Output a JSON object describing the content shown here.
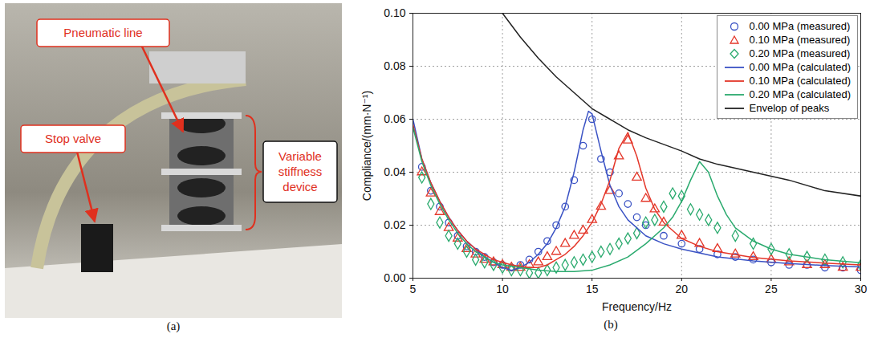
{
  "photo": {
    "label": "(a)",
    "annotations": [
      "Pneumatic line",
      "Stop valve",
      "Variable stiffness device"
    ]
  },
  "chart_data": {
    "type": "line",
    "panel_label": "(b)",
    "x_label": "Frequency/Hz",
    "y_label": "Compliance/(mm·N⁻¹)",
    "xlim": [
      5,
      30
    ],
    "xticks": [
      5,
      10,
      15,
      20,
      25,
      30
    ],
    "ylim": [
      0,
      0.1
    ],
    "yticks": [
      {
        "value": 0,
        "label": "0.00"
      },
      {
        "value": 0.02,
        "label": "0.02"
      },
      {
        "value": 0.04,
        "label": "0.04"
      },
      {
        "value": 0.06,
        "label": "0.06"
      },
      {
        "value": 0.08,
        "label": "0.08"
      },
      {
        "value": 0.1,
        "label": "0.10"
      }
    ],
    "grid": true,
    "legend": "upper right",
    "series": [
      {
        "name": "0.00 MPa (measured)",
        "type": "scatter",
        "marker": "circle",
        "color": "#3a52c4",
        "x": [
          5.5,
          6,
          6.5,
          7,
          7.5,
          8,
          8.5,
          9,
          9.5,
          10,
          10.5,
          11,
          11.5,
          12,
          12.5,
          13,
          13.5,
          14,
          14.5,
          15,
          15.5,
          16,
          16.5,
          17,
          17.5,
          18,
          19,
          20,
          21,
          22,
          23,
          24,
          25,
          26,
          27,
          28,
          29,
          30
        ],
        "values": [
          0.042,
          0.033,
          0.027,
          0.021,
          0.016,
          0.012,
          0.01,
          0.008,
          0.006,
          0.005,
          0.004,
          0.005,
          0.007,
          0.01,
          0.014,
          0.02,
          0.027,
          0.037,
          0.05,
          0.06,
          0.045,
          0.04,
          0.032,
          0.028,
          0.023,
          0.02,
          0.016,
          0.013,
          0.011,
          0.009,
          0.008,
          0.007,
          0.006,
          0.005,
          0.005,
          0.004,
          0.004,
          0.003
        ]
      },
      {
        "name": "0.10 MPa (measured)",
        "type": "scatter",
        "marker": "triangle",
        "color": "#e4372a",
        "x": [
          5.5,
          6,
          6.5,
          7,
          7.5,
          8,
          8.5,
          9,
          9.5,
          10,
          10.5,
          11,
          11.5,
          12,
          12.5,
          13,
          13.5,
          14,
          14.5,
          15,
          15.5,
          16,
          16.5,
          17,
          17.5,
          18,
          18.5,
          19,
          20,
          21,
          22,
          23,
          24,
          25,
          26,
          27,
          28,
          29,
          30
        ],
        "values": [
          0.04,
          0.032,
          0.025,
          0.019,
          0.015,
          0.011,
          0.009,
          0.007,
          0.006,
          0.005,
          0.004,
          0.004,
          0.005,
          0.006,
          0.008,
          0.01,
          0.013,
          0.016,
          0.018,
          0.022,
          0.027,
          0.033,
          0.046,
          0.052,
          0.038,
          0.03,
          0.026,
          0.021,
          0.016,
          0.013,
          0.011,
          0.009,
          0.008,
          0.007,
          0.006,
          0.005,
          0.005,
          0.004,
          0.004
        ]
      },
      {
        "name": "0.20 MPa (measured)",
        "type": "scatter",
        "marker": "diamond",
        "color": "#2aaa6e",
        "x": [
          5.5,
          6,
          6.5,
          7,
          7.5,
          8,
          8.5,
          9,
          9.5,
          10,
          10.5,
          11,
          11.5,
          12,
          12.5,
          13,
          13.5,
          14,
          14.5,
          15,
          15.5,
          16,
          16.5,
          17,
          17.5,
          18,
          18.5,
          19,
          19.5,
          20,
          20.5,
          21,
          21.5,
          22,
          23,
          24,
          25,
          26,
          27,
          28,
          29,
          30
        ],
        "values": [
          0.038,
          0.028,
          0.021,
          0.016,
          0.013,
          0.01,
          0.007,
          0.006,
          0.005,
          0.004,
          0.003,
          0.003,
          0.002,
          0.002,
          0.003,
          0.004,
          0.005,
          0.006,
          0.007,
          0.008,
          0.01,
          0.011,
          0.013,
          0.015,
          0.017,
          0.021,
          0.022,
          0.027,
          0.032,
          0.031,
          0.026,
          0.024,
          0.022,
          0.019,
          0.016,
          0.013,
          0.011,
          0.009,
          0.008,
          0.007,
          0.006,
          0.005
        ]
      },
      {
        "name": "0.00 MPa (calculated)",
        "type": "line",
        "line_style": "solid",
        "color": "#3a52c4",
        "x": [
          5,
          5.5,
          6,
          6.5,
          7,
          7.5,
          8,
          8.5,
          9,
          9.5,
          10,
          10.5,
          11,
          11.5,
          12,
          12.5,
          13,
          13.5,
          14,
          14.5,
          14.8,
          15,
          15.5,
          16,
          16.5,
          17,
          18,
          19,
          20,
          22,
          24,
          26,
          28,
          30
        ],
        "values": [
          0.06,
          0.045,
          0.036,
          0.029,
          0.023,
          0.018,
          0.014,
          0.011,
          0.008,
          0.006,
          0.004,
          0.003,
          0.004,
          0.006,
          0.009,
          0.013,
          0.019,
          0.027,
          0.04,
          0.056,
          0.063,
          0.062,
          0.048,
          0.035,
          0.027,
          0.022,
          0.016,
          0.013,
          0.011,
          0.008,
          0.0065,
          0.0055,
          0.0048,
          0.0042
        ]
      },
      {
        "name": "0.10 MPa (calculated)",
        "type": "line",
        "line_style": "solid",
        "color": "#e4372a",
        "x": [
          5,
          5.5,
          6,
          6.5,
          7,
          7.5,
          8,
          8.5,
          9,
          9.5,
          10,
          10.5,
          11,
          11.5,
          12,
          12.5,
          13,
          13.5,
          14,
          14.5,
          15,
          15.5,
          16,
          16.5,
          17,
          17.5,
          18,
          18.5,
          19,
          20,
          21,
          22,
          24,
          26,
          28,
          30
        ],
        "values": [
          0.058,
          0.045,
          0.036,
          0.029,
          0.023,
          0.018,
          0.014,
          0.011,
          0.009,
          0.007,
          0.006,
          0.005,
          0.0045,
          0.004,
          0.004,
          0.005,
          0.007,
          0.009,
          0.012,
          0.016,
          0.021,
          0.028,
          0.037,
          0.049,
          0.055,
          0.046,
          0.034,
          0.026,
          0.021,
          0.015,
          0.012,
          0.01,
          0.0078,
          0.0065,
          0.0057,
          0.005
        ]
      },
      {
        "name": "0.20 MPa (calculated)",
        "type": "line",
        "line_style": "solid",
        "color": "#2aaa6e",
        "x": [
          5,
          5.5,
          6,
          6.5,
          7,
          7.5,
          8,
          8.5,
          9,
          9.5,
          10,
          11,
          12,
          13,
          14,
          15,
          16,
          17,
          18,
          19,
          19.5,
          20,
          20.5,
          21,
          21.5,
          22,
          22.5,
          23,
          24,
          25,
          26,
          28,
          30
        ],
        "values": [
          0.057,
          0.044,
          0.035,
          0.028,
          0.022,
          0.017,
          0.013,
          0.01,
          0.008,
          0.006,
          0.005,
          0.004,
          0.003,
          0.0025,
          0.0025,
          0.003,
          0.005,
          0.008,
          0.013,
          0.019,
          0.023,
          0.029,
          0.037,
          0.044,
          0.04,
          0.031,
          0.024,
          0.019,
          0.014,
          0.011,
          0.009,
          0.007,
          0.0058
        ]
      },
      {
        "name": "Envelop of peaks",
        "type": "line",
        "line_style": "solid",
        "color": "#222222",
        "x": [
          10,
          11,
          12,
          13,
          14,
          15,
          16,
          17,
          18,
          20,
          21,
          22,
          24,
          26,
          28,
          30
        ],
        "values": [
          0.1,
          0.091,
          0.083,
          0.076,
          0.07,
          0.064,
          0.06,
          0.056,
          0.053,
          0.048,
          0.045,
          0.043,
          0.04,
          0.037,
          0.033,
          0.031
        ]
      }
    ]
  }
}
